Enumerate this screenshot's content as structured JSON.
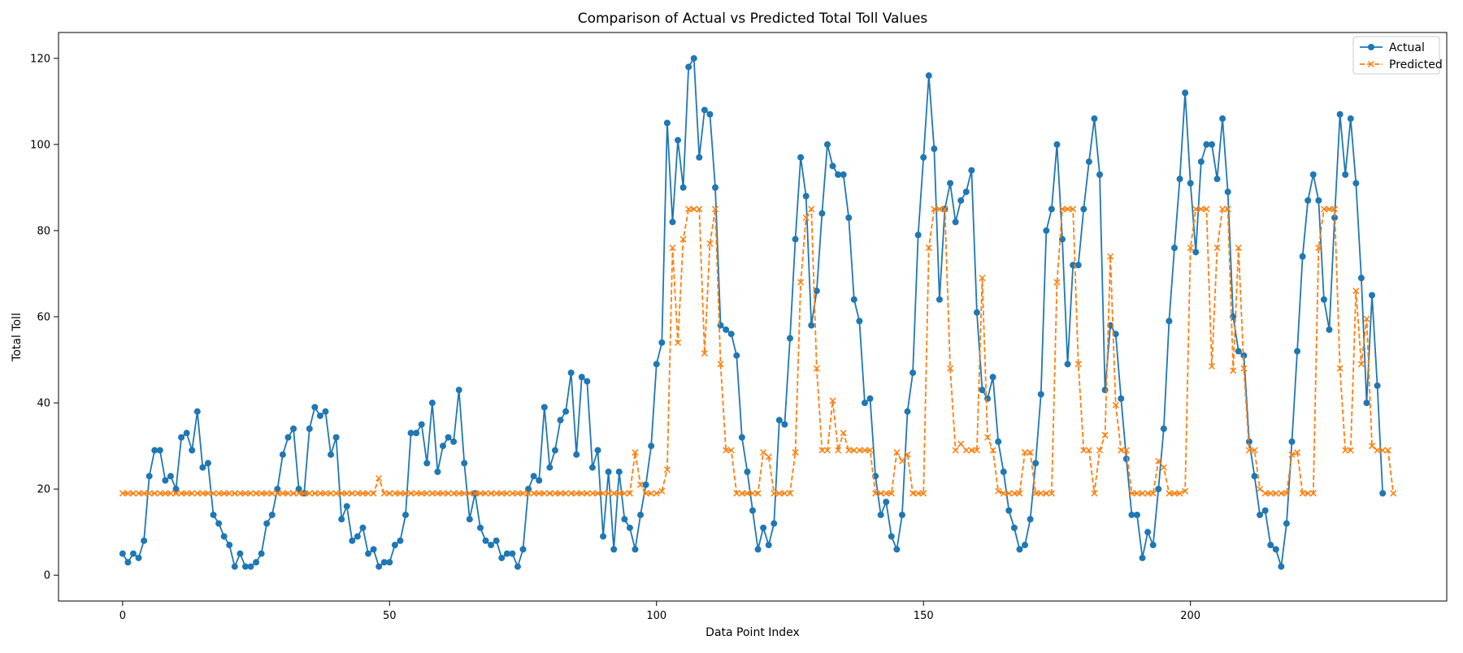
{
  "chart_data": {
    "type": "line",
    "title": "Comparison of Actual vs Predicted Total Toll Values",
    "xlabel": "Data Point Index",
    "ylabel": "Total Toll",
    "xlim": [
      -12,
      248
    ],
    "ylim": [
      -6,
      126
    ],
    "xticks": [
      0,
      50,
      100,
      150,
      200
    ],
    "yticks": [
      0,
      20,
      40,
      60,
      80,
      100,
      120
    ],
    "grid": false,
    "legend_position": "top-right",
    "series": [
      {
        "name": "Actual",
        "color": "#1f77b4",
        "line_style": "solid",
        "marker": "circle",
        "values": [
          5,
          3,
          5,
          4,
          8,
          23,
          29,
          29,
          22,
          23,
          20,
          32,
          33,
          29,
          38,
          25,
          26,
          14,
          12,
          9,
          7,
          2,
          5,
          2,
          2,
          3,
          5,
          12,
          14,
          20,
          28,
          32,
          34,
          20,
          19,
          34,
          39,
          37,
          38,
          28,
          32,
          13,
          16,
          8,
          9,
          11,
          5,
          6,
          2,
          3,
          3,
          7,
          8,
          14,
          33,
          33,
          35,
          26,
          40,
          24,
          30,
          32,
          31,
          43,
          26,
          13,
          19,
          11,
          8,
          7,
          8,
          4,
          5,
          5,
          2,
          6,
          20,
          23,
          22,
          39,
          25,
          29,
          36,
          38,
          47,
          28,
          46,
          45,
          25,
          29,
          9,
          24,
          6,
          24,
          13,
          11,
          6,
          14,
          21,
          30,
          49,
          54,
          105,
          82,
          101,
          90,
          118,
          120,
          97,
          108,
          107,
          90,
          58,
          57,
          56,
          51,
          32,
          24,
          15,
          6,
          11,
          7,
          12,
          36,
          35,
          55,
          78,
          97,
          88,
          58,
          66,
          84,
          100,
          95,
          93,
          93,
          83,
          64,
          59,
          40,
          41,
          23,
          14,
          17,
          9,
          6,
          14,
          38,
          47,
          79,
          97,
          116,
          99,
          64,
          85,
          91,
          82,
          87,
          89,
          94,
          61,
          43,
          41,
          46,
          31,
          24,
          15,
          11,
          6,
          7,
          13,
          26,
          42,
          80,
          85,
          100,
          78,
          49,
          72,
          72,
          85,
          96,
          106,
          93,
          43,
          58,
          56,
          41,
          27,
          14,
          14,
          4,
          10,
          7,
          20,
          34,
          59,
          76,
          92,
          112,
          91,
          75,
          96,
          100,
          100,
          92,
          106,
          89,
          60,
          52,
          51,
          31,
          23,
          14,
          15,
          7,
          6,
          2,
          12,
          31,
          52,
          74,
          87,
          93,
          87,
          64,
          57,
          83,
          107,
          93,
          106,
          91,
          69,
          40,
          65,
          44,
          19
        ]
      },
      {
        "name": "Predicted",
        "color": "#ff7f0e",
        "line_style": "dashed",
        "marker": "x",
        "values": [
          19,
          19,
          19,
          19,
          19,
          19,
          19,
          19,
          19,
          19,
          19,
          19,
          19,
          19,
          19,
          19,
          19,
          19,
          19,
          19,
          19,
          19,
          19,
          19,
          19,
          19,
          19,
          19,
          19,
          19,
          19,
          19,
          19,
          19,
          19,
          19,
          19,
          19,
          19,
          19,
          19,
          19,
          19,
          19,
          19,
          19,
          19,
          19,
          22.5,
          19,
          19,
          19,
          19,
          19,
          19,
          19,
          19,
          19,
          19,
          19,
          19,
          19,
          19,
          19,
          19,
          19,
          19,
          19,
          19,
          19,
          19,
          19,
          19,
          19,
          19,
          19,
          19,
          19,
          19,
          19,
          19,
          19,
          19,
          19,
          19,
          19,
          19,
          19,
          19,
          19,
          19,
          19,
          19,
          19,
          19,
          19,
          28.5,
          21,
          19,
          19,
          19,
          19.5,
          24.5,
          76,
          54,
          78,
          85,
          85,
          85,
          51.5,
          77,
          85,
          49,
          29,
          29,
          19,
          19,
          19,
          19,
          19,
          28.5,
          27.5,
          19,
          19,
          19,
          19,
          28.5,
          68,
          83,
          85,
          48,
          29,
          29,
          40.5,
          29,
          33,
          29,
          29,
          29,
          29,
          29,
          19,
          19,
          19,
          19,
          28.5,
          26.5,
          28,
          19,
          19,
          19,
          76,
          85,
          85,
          85,
          48,
          29,
          30.5,
          29,
          29,
          29,
          69,
          32,
          29,
          19.5,
          19,
          19,
          19,
          19,
          28.5,
          28.5,
          19,
          19,
          19,
          19,
          68,
          85,
          85,
          85,
          49,
          29,
          29,
          19,
          29,
          32.5,
          74,
          39.5,
          29,
          29,
          19,
          19,
          19,
          19,
          19,
          26.5,
          25,
          19,
          19,
          19,
          19.5,
          76,
          85,
          85,
          85,
          48.5,
          76,
          85,
          85,
          47.5,
          76,
          48,
          29,
          29,
          20,
          19,
          19,
          19,
          19,
          19,
          28,
          28.5,
          19,
          19,
          19,
          76,
          85,
          85,
          85,
          48,
          29,
          29,
          66,
          49,
          59.5,
          30,
          29,
          29,
          29,
          19
        ]
      }
    ]
  }
}
